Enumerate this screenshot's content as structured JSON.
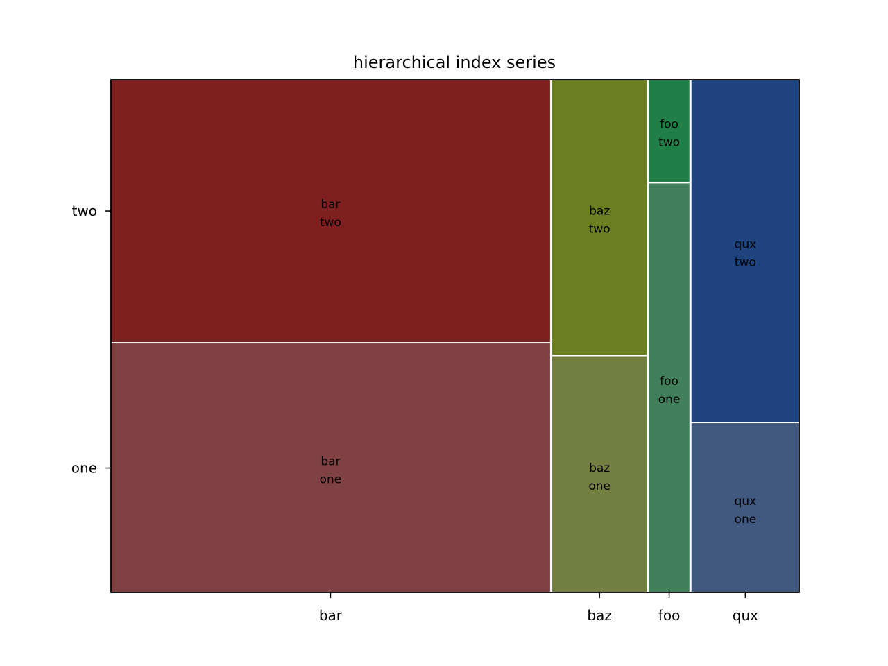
{
  "chart_data": {
    "type": "mosaic",
    "title": "hierarchical index series",
    "xlabel": "",
    "ylabel": "",
    "x_categories": [
      "bar",
      "baz",
      "foo",
      "qux"
    ],
    "y_categories": [
      "one",
      "two"
    ],
    "x_fractions": [
      0.64,
      0.138,
      0.059,
      0.157
    ],
    "y_fractions": {
      "bar": {
        "one": 0.487,
        "two": 0.513
      },
      "baz": {
        "one": 0.462,
        "two": 0.538
      },
      "foo": {
        "one": 0.8,
        "two": 0.2
      },
      "qux": {
        "one": 0.331,
        "two": 0.669
      }
    },
    "tile_labels": {
      "bar": {
        "one": [
          "bar",
          "one"
        ],
        "two": [
          "bar",
          "two"
        ]
      },
      "baz": {
        "one": [
          "baz",
          "one"
        ],
        "two": [
          "baz",
          "two"
        ]
      },
      "foo": {
        "one": [
          "foo",
          "one"
        ],
        "two": [
          "foo",
          "two"
        ]
      },
      "qux": {
        "one": [
          "qux",
          "one"
        ],
        "two": [
          "qux",
          "two"
        ]
      }
    },
    "colors": {
      "bar": {
        "one": "#7f4141",
        "two": "#7f2020"
      },
      "baz": {
        "one": "#737f41",
        "two": "#6b7f20"
      },
      "foo": {
        "one": "#417f5a",
        "two": "#207f46"
      },
      "qux": {
        "one": "#41597f",
        "two": "#20447f"
      }
    },
    "legend": "none",
    "grid": false
  }
}
